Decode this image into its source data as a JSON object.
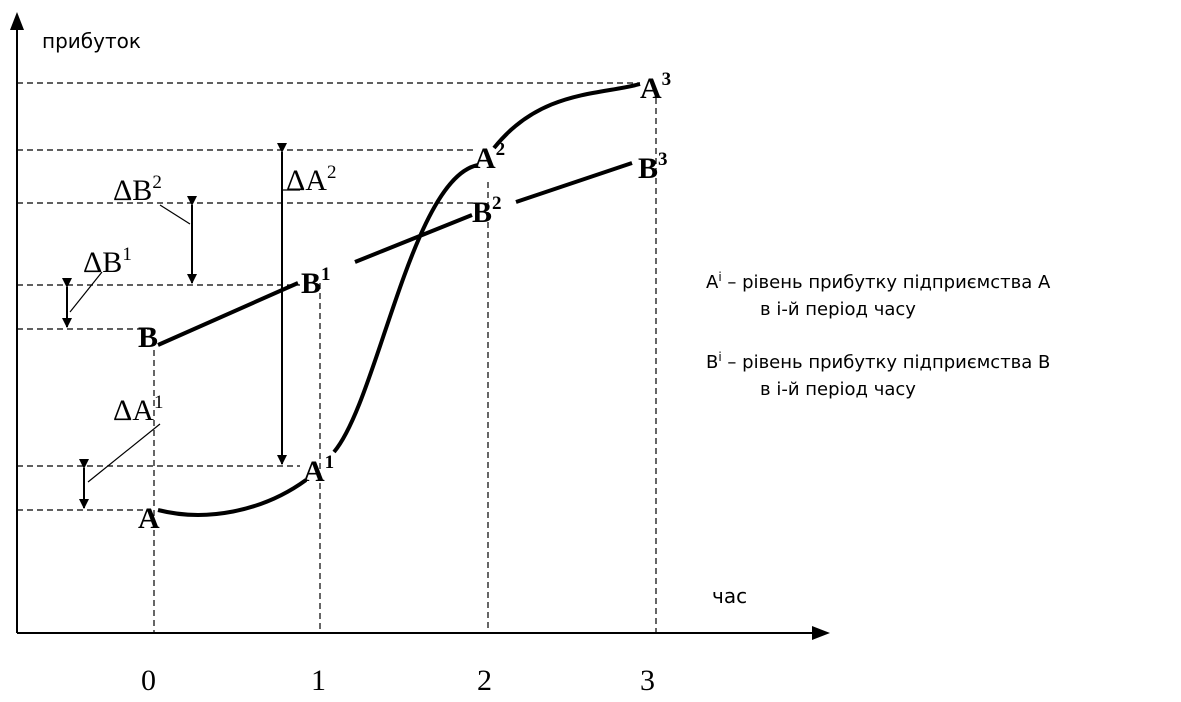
{
  "axes": {
    "y_label": "прибуток",
    "x_label": "час",
    "x_ticks": [
      "0",
      "1",
      "2",
      "3"
    ]
  },
  "points": {
    "A": {
      "base": "A",
      "sup": ""
    },
    "A1": {
      "base": "A",
      "sup": "1"
    },
    "A2": {
      "base": "A",
      "sup": "2"
    },
    "A3": {
      "base": "A",
      "sup": "3"
    },
    "B": {
      "base": "B",
      "sup": ""
    },
    "B1": {
      "base": "B",
      "sup": "1"
    },
    "B2": {
      "base": "B",
      "sup": "2"
    },
    "B3": {
      "base": "B",
      "sup": "3"
    }
  },
  "deltas": {
    "dA1": {
      "base": "ΔA",
      "sup": "1"
    },
    "dA2": {
      "base": "ΔA",
      "sup": "2"
    },
    "dB1": {
      "base": "ΔB",
      "sup": "1"
    },
    "dB2": {
      "base": "ΔB",
      "sup": "2"
    }
  },
  "legend": {
    "a": {
      "symbol": "A",
      "sup": "i",
      "line1": " – рівень прибутку підприємства А",
      "line2": "в і-й період часу"
    },
    "b": {
      "symbol": "B",
      "sup": "i",
      "line1": " – рівень прибутку підприємства В",
      "line2": "в і-й період часу"
    }
  }
}
